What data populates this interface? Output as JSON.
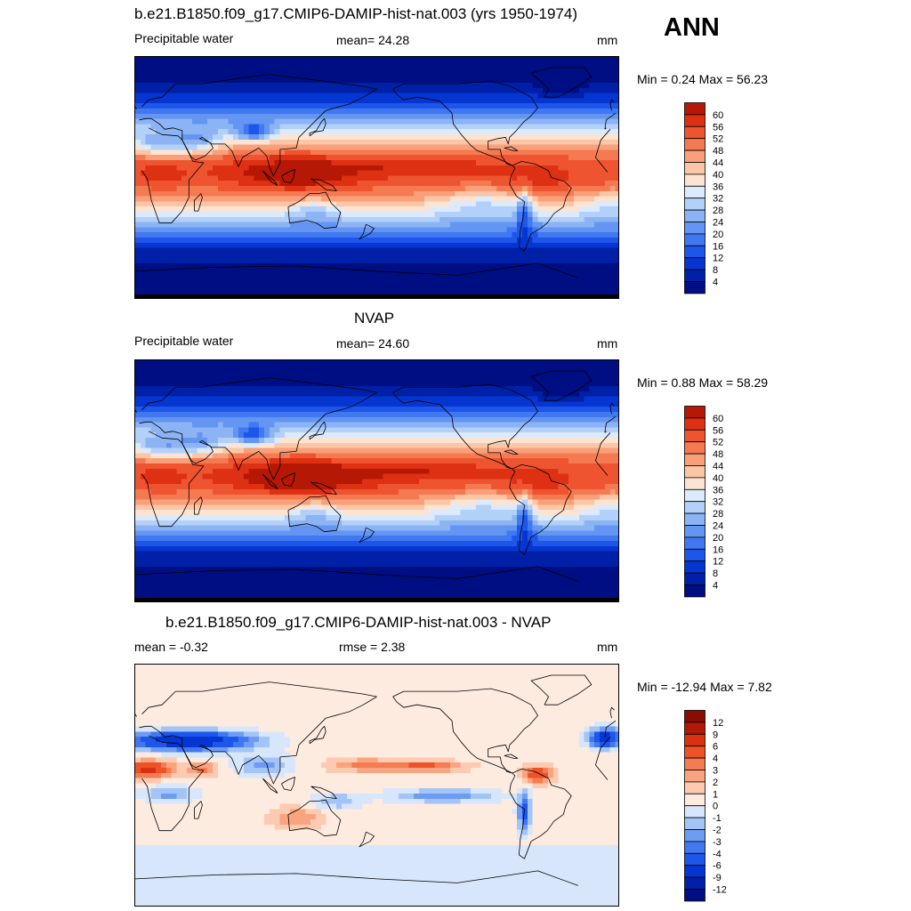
{
  "season": "ANN",
  "panels": [
    {
      "id": "model",
      "title": "b.e21.B1850.f09_g17.CMIP6-DAMIP-hist-nat.003 (yrs 1950-1974)",
      "left": "Precipitable water",
      "center": "mean=  24.28",
      "right": "mm",
      "minmax": "Min =   0.24 Max =  56.23",
      "kind": "abs",
      "levels": [
        "4",
        "8",
        "12",
        "16",
        "20",
        "24",
        "28",
        "32",
        "36",
        "40",
        "44",
        "48",
        "52",
        "56",
        "60"
      ],
      "colors": [
        "#000e83",
        "#0020a8",
        "#0536d2",
        "#1e56ea",
        "#3f78f0",
        "#6495f2",
        "#8cb4f5",
        "#b3d0f8",
        "#dbeafc",
        "#fde4d2",
        "#fcc6a6",
        "#f9a07a",
        "#f57a52",
        "#ef5430",
        "#de3012",
        "#b51805"
      ]
    },
    {
      "id": "obs",
      "title": "NVAP",
      "left": "Precipitable water",
      "center": "mean=  24.60",
      "right": "mm",
      "minmax": "Min =   0.88 Max =  58.29",
      "kind": "abs",
      "levels": [
        "4",
        "8",
        "12",
        "16",
        "20",
        "24",
        "28",
        "32",
        "36",
        "40",
        "44",
        "48",
        "52",
        "56",
        "60"
      ],
      "colors": [
        "#000e83",
        "#0020a8",
        "#0536d2",
        "#1e56ea",
        "#3f78f0",
        "#6495f2",
        "#8cb4f5",
        "#b3d0f8",
        "#dbeafc",
        "#fde4d2",
        "#fcc6a6",
        "#f9a07a",
        "#f57a52",
        "#ef5430",
        "#de3012",
        "#b51805"
      ]
    },
    {
      "id": "diff",
      "title": "b.e21.B1850.f09_g17.CMIP6-DAMIP-hist-nat.003 - NVAP",
      "left": "mean =  -0.32",
      "center": "rmse =   2.38",
      "right": "mm",
      "minmax": "Min = -12.94 Max =   7.82",
      "kind": "diff",
      "levels": [
        "-12",
        "-9",
        "-6",
        "-4",
        "-3",
        "-2",
        "-1",
        "0",
        "1",
        "2",
        "3",
        "4",
        "6",
        "9",
        "12"
      ],
      "colors": [
        "#000e83",
        "#0020a8",
        "#0536d2",
        "#1e56ea",
        "#3f78f0",
        "#6e9cf2",
        "#a3c4f6",
        "#d7e6fb",
        "#fdebe0",
        "#fccab0",
        "#f9a47e",
        "#f47c52",
        "#ee5228",
        "#d93210",
        "#b21806",
        "#8a0d03"
      ]
    }
  ]
}
